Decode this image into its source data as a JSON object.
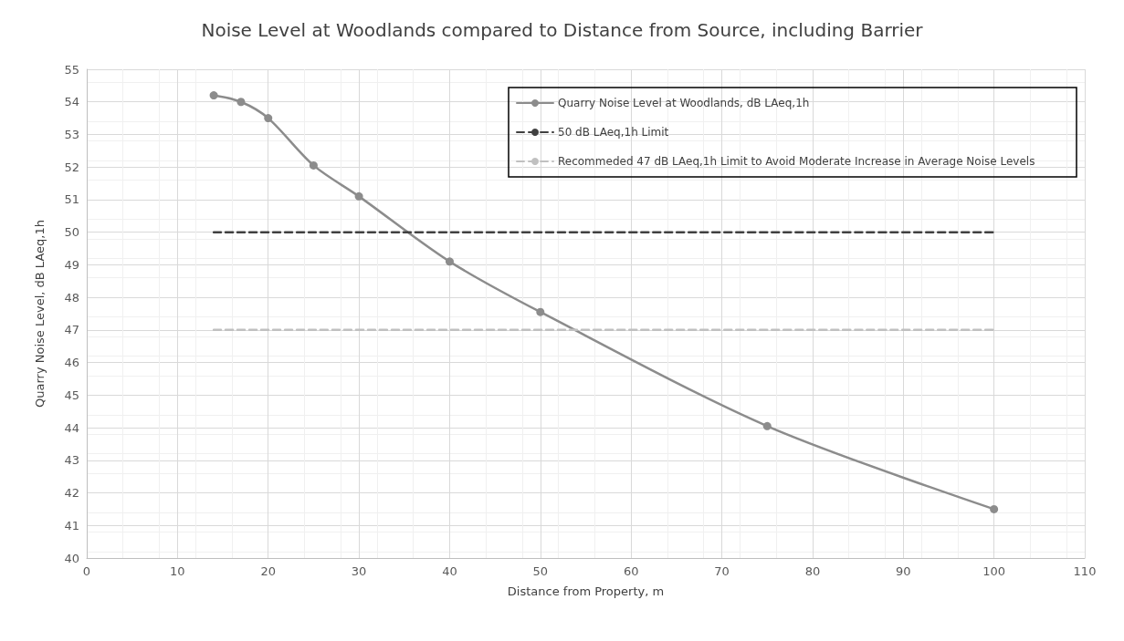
{
  "chart_data": {
    "type": "line",
    "title": "Noise Level at Woodlands compared to Distance from Source, including Barrier",
    "xlabel": "Distance from Property, m",
    "ylabel": "Quarry Noise Level, dB LAeq,1h",
    "series": [
      {
        "name": "Quarry Noise Level at Woodlands, dB LAeq,1h",
        "color": "#8c8c8c",
        "x": [
          14,
          17,
          20,
          25,
          30,
          40,
          50,
          75,
          100
        ],
        "values": [
          54.2,
          54.0,
          53.5,
          52.05,
          51.1,
          49.1,
          47.55,
          44.05,
          41.5
        ],
        "marker": "circle",
        "line_style": "solid"
      },
      {
        "name": "50 dB LAeq,1h Limit",
        "color": "#404040",
        "x": [
          14,
          100
        ],
        "values": [
          50,
          50
        ],
        "marker": "none",
        "line_style": "dashed"
      },
      {
        "name": "Recommeded 47 dB LAeq,1h Limit to Avoid Moderate Increase in Average Noise Levels",
        "color": "#c0c0c0",
        "x": [
          14,
          100
        ],
        "values": [
          47,
          47
        ],
        "marker": "none",
        "line_style": "dashed"
      }
    ],
    "xlim": [
      0,
      110
    ],
    "xticks": [
      0,
      10,
      20,
      30,
      40,
      50,
      60,
      70,
      80,
      90,
      100,
      110
    ],
    "ylim": [
      40,
      55
    ],
    "yticks": [
      40,
      41,
      42,
      43,
      44,
      45,
      46,
      47,
      48,
      49,
      50,
      51,
      52,
      53,
      54,
      55
    ],
    "grid": true,
    "legend": "top right"
  }
}
